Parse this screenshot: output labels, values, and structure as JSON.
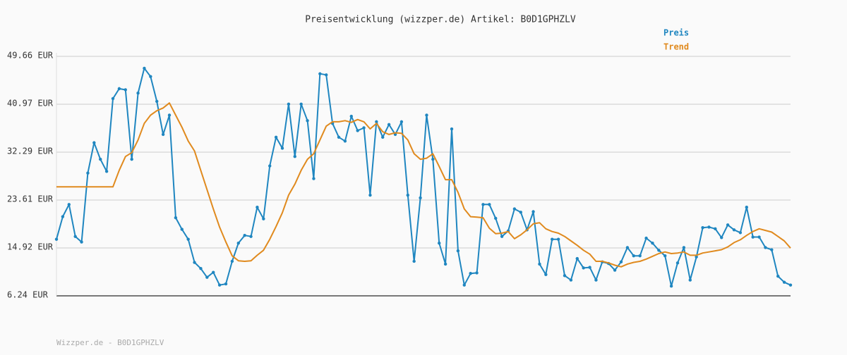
{
  "chart_data": {
    "type": "line",
    "title": "Preisentwicklung (wizzper.de) Artikel: B0D1GPHZLV",
    "footer": "Wizzper.de - B0D1GPHZLV",
    "ylim": [
      6.24,
      49.66
    ],
    "yticks": [
      {
        "value": 6.24,
        "label": "6.24 EUR"
      },
      {
        "value": 14.92,
        "label": "14.92 EUR"
      },
      {
        "value": 23.61,
        "label": "23.61 EUR"
      },
      {
        "value": 32.29,
        "label": "32.29 EUR"
      },
      {
        "value": 40.97,
        "label": "40.97 EUR"
      },
      {
        "value": 49.66,
        "label": "49.66 EUR"
      }
    ],
    "grid": true,
    "legend": "top-right",
    "series": [
      {
        "name": "Preis",
        "color": "#1f86c0",
        "markers": true,
        "values": [
          16.5,
          20.6,
          22.8,
          17,
          16,
          28.5,
          34,
          31,
          28.8,
          42,
          43.8,
          43.6,
          31,
          43,
          47.5,
          46,
          41.5,
          35.5,
          39,
          20.4,
          18.3,
          16.5,
          12.3,
          11.2,
          9.6,
          10.5,
          8.2,
          8.4,
          12.5,
          15.8,
          17.2,
          17,
          22.3,
          20.2,
          29.8,
          35,
          33,
          41,
          31.5,
          41,
          38,
          27.5,
          46.5,
          46.3,
          37.5,
          35,
          34.3,
          38.8,
          36.2,
          36.7,
          24.5,
          37.8,
          35,
          37.3,
          35.5,
          37.8,
          24.5,
          12.5,
          24,
          39,
          31,
          15.8,
          12,
          36.5,
          14.4,
          8.2,
          10.3,
          10.4,
          22.8,
          22.8,
          20.3,
          17,
          18,
          22,
          21.4,
          18.2,
          21.5,
          12,
          10.1,
          16.5,
          16.5,
          9.9,
          9.1,
          13,
          11.3,
          11.4,
          9.1,
          12.4,
          12.1,
          10.9,
          12.4,
          15,
          13.5,
          13.5,
          16.7,
          15.8,
          14.5,
          13.5,
          8,
          12.2,
          15,
          9.1,
          13.3,
          18.6,
          18.7,
          18.4,
          16.8,
          19.1,
          18.2,
          17.7,
          22.3,
          16.9,
          16.9,
          15,
          14.6,
          9.8,
          8.7,
          8.2
        ]
      },
      {
        "name": "Trend",
        "color": "#e08a1e",
        "markers": false,
        "values": [
          26,
          26,
          26,
          26,
          26,
          26,
          26,
          26,
          26,
          26,
          29,
          31.5,
          32.2,
          34.5,
          37.5,
          39,
          39.8,
          40.3,
          41.2,
          39,
          36.8,
          34.3,
          32.5,
          29,
          25.5,
          22,
          18.7,
          16,
          13.5,
          12.6,
          12.5,
          12.6,
          13.6,
          14.5,
          16.5,
          18.8,
          21.3,
          24.5,
          26.5,
          29,
          31,
          32,
          34.5,
          37,
          37.8,
          37.8,
          38,
          37.7,
          38.2,
          37.8,
          36.5,
          37.5,
          36,
          35.5,
          35.8,
          35.7,
          34.5,
          32,
          31,
          31.2,
          32,
          29.7,
          27.3,
          27.3,
          25,
          22,
          20.6,
          20.5,
          20.4,
          18.5,
          17.5,
          17.6,
          17.9,
          16.6,
          17.3,
          18.2,
          19.3,
          19.5,
          18.4,
          17.9,
          17.6,
          17,
          16.2,
          15.4,
          14.5,
          13.8,
          12.5,
          12.5,
          12.2,
          11.8,
          11.5,
          12,
          12.3,
          12.5,
          12.9,
          13.4,
          13.9,
          14.2,
          13.9,
          14,
          14.2,
          13.6,
          13.6,
          14,
          14.2,
          14.4,
          14.6,
          15.1,
          15.9,
          16.4,
          17.2,
          17.9,
          18.4,
          18.1,
          17.8,
          17,
          16.2,
          14.9
        ]
      }
    ]
  }
}
